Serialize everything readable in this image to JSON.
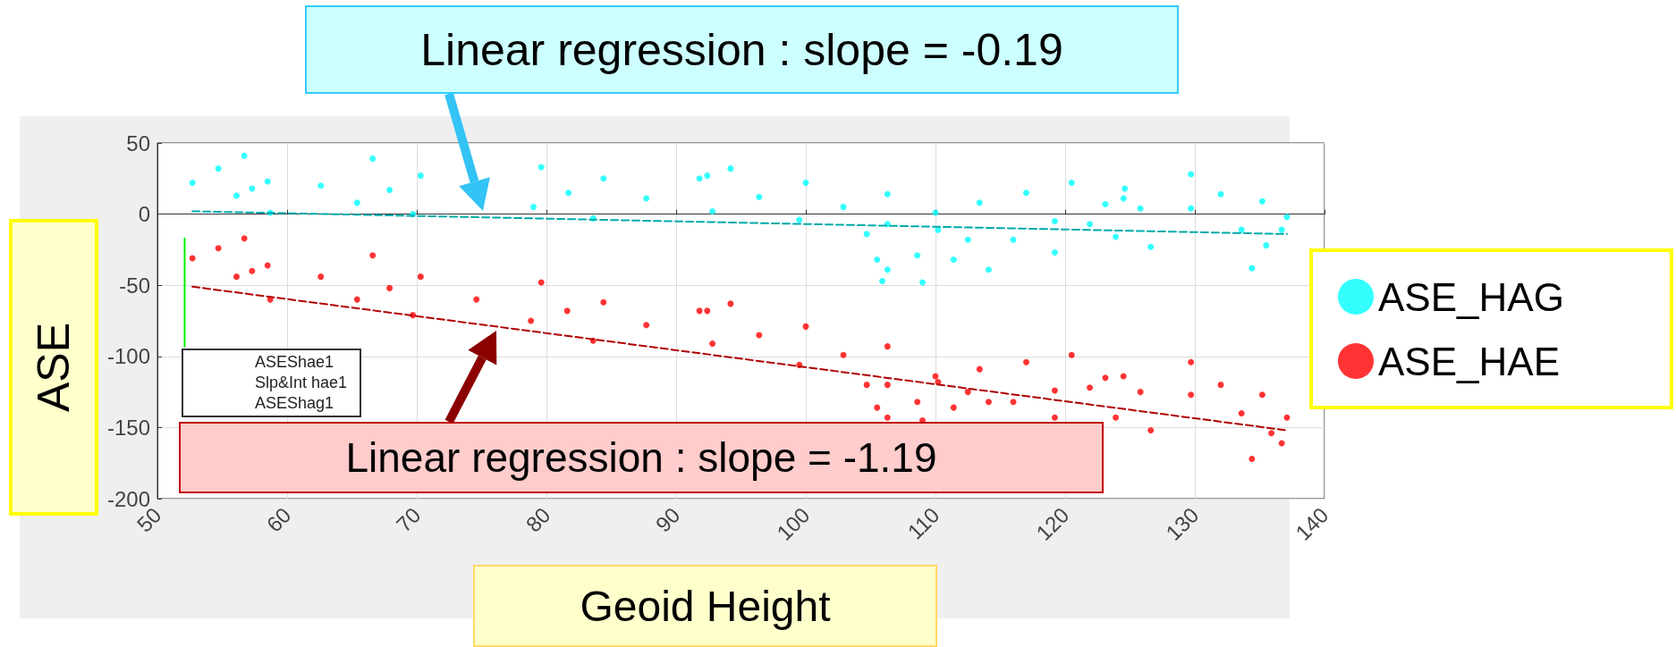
{
  "chart_data": {
    "type": "scatter",
    "xlabel": "Geoid Height",
    "ylabel": "ASE",
    "xlim": [
      50,
      140
    ],
    "xticks": [
      50,
      60,
      70,
      80,
      90,
      100,
      110,
      120,
      130,
      140
    ],
    "ylim": [
      -200,
      50
    ],
    "yticks": [
      -200,
      -150,
      -100,
      -50,
      0,
      50
    ],
    "grid": true,
    "legend": "right",
    "marker": "circle",
    "annotations": [
      "Linear regression :  slope = -0.19",
      "Linear regression :  slope = -1.19",
      "ASEShae1",
      "Slp&Int hae1",
      "ASEShag1"
    ],
    "series": [
      {
        "name": "ASE_HAG",
        "color": "#00ffff",
        "x": [
          52.7,
          54.7,
          56.7,
          56.1,
          57.3,
          58.5,
          58.7,
          62.6,
          66.6,
          65.4,
          67.9,
          70.3,
          69.7,
          79.6,
          79,
          81.7,
          84.4,
          83.6,
          87.7,
          91.8,
          92.4,
          94.2,
          92.8,
          96.4,
          100,
          99.5,
          102.9,
          106.3,
          106.3,
          110,
          113.4,
          117,
          120.5,
          119.2,
          124.5,
          129.7,
          104.7,
          105.5,
          106.3,
          108.6,
          110.2,
          112.5,
          114.1,
          116,
          109,
          105.9,
          111.4,
          119.2,
          121.9,
          123.9,
          126.6,
          123.1,
          124.6,
          129.7,
          132,
          135.2,
          137.1,
          133.6,
          135.5,
          134.4,
          136.7,
          125.8
        ],
        "values": [
          22,
          32,
          41,
          13,
          18,
          23,
          1,
          20,
          39,
          8,
          17,
          27,
          0,
          33,
          5,
          15,
          25,
          -3,
          11,
          25,
          27,
          32,
          2,
          12,
          22,
          -4,
          5,
          14,
          -7,
          1,
          8,
          15,
          22,
          -5,
          11,
          28,
          -14,
          -32,
          -39,
          -29,
          -11,
          -18,
          -39,
          -18,
          -48,
          -47,
          -32,
          -27,
          -7,
          -16,
          -23,
          7,
          18,
          4,
          14,
          9,
          -2,
          -11,
          -22,
          -38,
          -11,
          4
        ]
      },
      {
        "name": "ASE_HAE",
        "color": "#ff0000",
        "x": [
          52.7,
          54.7,
          56.7,
          56.1,
          57.3,
          58.5,
          58.7,
          62.6,
          66.6,
          65.4,
          67.9,
          70.3,
          69.7,
          74.6,
          79.6,
          78.8,
          81.6,
          84.4,
          83.6,
          87.7,
          91.8,
          92.4,
          94.2,
          92.8,
          96.4,
          100,
          99.5,
          102.9,
          106.3,
          106.3,
          110,
          113.4,
          117,
          120.5,
          119.2,
          124.5,
          129.7,
          104.7,
          105.5,
          106.3,
          108.6,
          110.2,
          112.5,
          114.1,
          116,
          109,
          111.4,
          119.2,
          121.9,
          123.9,
          126.6,
          123.1,
          129.7,
          132,
          135.2,
          137.1,
          133.6,
          135.9,
          134.4,
          136.7,
          125.8
        ],
        "values": [
          -31,
          -24,
          -17,
          -44,
          -40,
          -36,
          -60,
          -44,
          -29,
          -60,
          -52,
          -44,
          -71,
          -60,
          -48,
          -75,
          -68,
          -62,
          -89,
          -78,
          -68,
          -68,
          -63,
          -91,
          -85,
          -79,
          -106,
          -99,
          -93,
          -120,
          -114,
          -109,
          -104,
          -99,
          -124,
          -114,
          -104,
          -120,
          -136,
          -143,
          -132,
          -118,
          -125,
          -132,
          -132,
          -145,
          -136,
          -143,
          -122,
          -143,
          -152,
          -115,
          -127,
          -120,
          -127,
          -143,
          -140,
          -154,
          -172,
          -161,
          -125
        ]
      },
      {
        "type": "line",
        "marker": "none",
        "color": "#00aaaa",
        "line_style": "dashed",
        "x": [
          52.7,
          137.1
        ],
        "values": [
          2,
          -14
        ]
      },
      {
        "type": "line",
        "marker": "none",
        "color": "#b00000",
        "line_style": "dashed",
        "x": [
          52.7,
          137.1
        ],
        "values": [
          -51,
          -152
        ]
      },
      {
        "type": "line",
        "marker": "none",
        "color": "#00ee00",
        "line_style": "solid",
        "x": [
          52.1,
          52.1
        ],
        "values": [
          -17,
          -93
        ]
      }
    ]
  }
}
